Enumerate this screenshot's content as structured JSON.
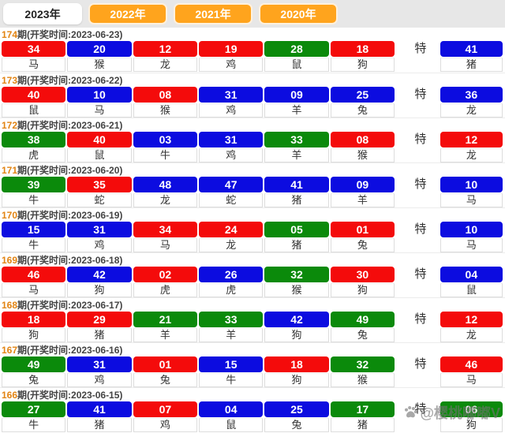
{
  "tabs": [
    {
      "label": "2023年",
      "active": true
    },
    {
      "label": "2022年",
      "active": false
    },
    {
      "label": "2021年",
      "active": false
    },
    {
      "label": "2020年",
      "active": false
    }
  ],
  "te_label": "特",
  "watermark": "@樱桃嘟嘟V",
  "palette": {
    "red": "#f40b0b",
    "blue": "#0c0ce0",
    "green": "#0b8a0b",
    "tab_orange": "#ffa41d",
    "issue_orange": "#e28413"
  },
  "draws": [
    {
      "issue": "174",
      "header_rest": "期(开奖时间:2023-06-23)",
      "balls": [
        {
          "num": "34",
          "color": "red",
          "zodiac": "马"
        },
        {
          "num": "20",
          "color": "blue",
          "zodiac": "猴"
        },
        {
          "num": "12",
          "color": "red",
          "zodiac": "龙"
        },
        {
          "num": "19",
          "color": "red",
          "zodiac": "鸡"
        },
        {
          "num": "28",
          "color": "green",
          "zodiac": "鼠"
        },
        {
          "num": "18",
          "color": "red",
          "zodiac": "狗"
        }
      ],
      "special": {
        "num": "41",
        "color": "blue",
        "zodiac": "猪"
      }
    },
    {
      "issue": "173",
      "header_rest": "期(开奖时间:2023-06-22)",
      "balls": [
        {
          "num": "40",
          "color": "red",
          "zodiac": "鼠"
        },
        {
          "num": "10",
          "color": "blue",
          "zodiac": "马"
        },
        {
          "num": "08",
          "color": "red",
          "zodiac": "猴"
        },
        {
          "num": "31",
          "color": "blue",
          "zodiac": "鸡"
        },
        {
          "num": "09",
          "color": "blue",
          "zodiac": "羊"
        },
        {
          "num": "25",
          "color": "blue",
          "zodiac": "兔"
        }
      ],
      "special": {
        "num": "36",
        "color": "blue",
        "zodiac": "龙"
      }
    },
    {
      "issue": "172",
      "header_rest": "期(开奖时间:2023-06-21)",
      "balls": [
        {
          "num": "38",
          "color": "green",
          "zodiac": "虎"
        },
        {
          "num": "40",
          "color": "red",
          "zodiac": "鼠"
        },
        {
          "num": "03",
          "color": "blue",
          "zodiac": "牛"
        },
        {
          "num": "31",
          "color": "blue",
          "zodiac": "鸡"
        },
        {
          "num": "33",
          "color": "green",
          "zodiac": "羊"
        },
        {
          "num": "08",
          "color": "red",
          "zodiac": "猴"
        }
      ],
      "special": {
        "num": "12",
        "color": "red",
        "zodiac": "龙"
      }
    },
    {
      "issue": "171",
      "header_rest": "期(开奖时间:2023-06-20)",
      "balls": [
        {
          "num": "39",
          "color": "green",
          "zodiac": "牛"
        },
        {
          "num": "35",
          "color": "red",
          "zodiac": "蛇"
        },
        {
          "num": "48",
          "color": "blue",
          "zodiac": "龙"
        },
        {
          "num": "47",
          "color": "blue",
          "zodiac": "蛇"
        },
        {
          "num": "41",
          "color": "blue",
          "zodiac": "猪"
        },
        {
          "num": "09",
          "color": "blue",
          "zodiac": "羊"
        }
      ],
      "special": {
        "num": "10",
        "color": "blue",
        "zodiac": "马"
      }
    },
    {
      "issue": "170",
      "header_rest": "期(开奖时间:2023-06-19)",
      "balls": [
        {
          "num": "15",
          "color": "blue",
          "zodiac": "牛"
        },
        {
          "num": "31",
          "color": "blue",
          "zodiac": "鸡"
        },
        {
          "num": "34",
          "color": "red",
          "zodiac": "马"
        },
        {
          "num": "24",
          "color": "red",
          "zodiac": "龙"
        },
        {
          "num": "05",
          "color": "green",
          "zodiac": "猪"
        },
        {
          "num": "01",
          "color": "red",
          "zodiac": "兔"
        }
      ],
      "special": {
        "num": "10",
        "color": "blue",
        "zodiac": "马"
      }
    },
    {
      "issue": "169",
      "header_rest": "期(开奖时间:2023-06-18)",
      "balls": [
        {
          "num": "46",
          "color": "red",
          "zodiac": "马"
        },
        {
          "num": "42",
          "color": "blue",
          "zodiac": "狗"
        },
        {
          "num": "02",
          "color": "red",
          "zodiac": "虎"
        },
        {
          "num": "26",
          "color": "blue",
          "zodiac": "虎"
        },
        {
          "num": "32",
          "color": "green",
          "zodiac": "猴"
        },
        {
          "num": "30",
          "color": "red",
          "zodiac": "狗"
        }
      ],
      "special": {
        "num": "04",
        "color": "blue",
        "zodiac": "鼠"
      }
    },
    {
      "issue": "168",
      "header_rest": "期(开奖时间:2023-06-17)",
      "balls": [
        {
          "num": "18",
          "color": "red",
          "zodiac": "狗"
        },
        {
          "num": "29",
          "color": "red",
          "zodiac": "猪"
        },
        {
          "num": "21",
          "color": "green",
          "zodiac": "羊"
        },
        {
          "num": "33",
          "color": "green",
          "zodiac": "羊"
        },
        {
          "num": "42",
          "color": "blue",
          "zodiac": "狗"
        },
        {
          "num": "49",
          "color": "green",
          "zodiac": "兔"
        }
      ],
      "special": {
        "num": "12",
        "color": "red",
        "zodiac": "龙"
      }
    },
    {
      "issue": "167",
      "header_rest": "期(开奖时间:2023-06-16)",
      "balls": [
        {
          "num": "49",
          "color": "green",
          "zodiac": "兔"
        },
        {
          "num": "31",
          "color": "blue",
          "zodiac": "鸡"
        },
        {
          "num": "01",
          "color": "red",
          "zodiac": "兔"
        },
        {
          "num": "15",
          "color": "blue",
          "zodiac": "牛"
        },
        {
          "num": "18",
          "color": "red",
          "zodiac": "狗"
        },
        {
          "num": "32",
          "color": "green",
          "zodiac": "猴"
        }
      ],
      "special": {
        "num": "46",
        "color": "red",
        "zodiac": "马"
      }
    },
    {
      "issue": "166",
      "header_rest": "期(开奖时间:2023-06-15)",
      "balls": [
        {
          "num": "27",
          "color": "green",
          "zodiac": "牛"
        },
        {
          "num": "41",
          "color": "blue",
          "zodiac": "猪"
        },
        {
          "num": "07",
          "color": "red",
          "zodiac": "鸡"
        },
        {
          "num": "04",
          "color": "blue",
          "zodiac": "鼠"
        },
        {
          "num": "25",
          "color": "blue",
          "zodiac": "兔"
        },
        {
          "num": "17",
          "color": "green",
          "zodiac": "猪"
        }
      ],
      "special": {
        "num": "06",
        "color": "green",
        "zodiac": "狗"
      }
    }
  ]
}
